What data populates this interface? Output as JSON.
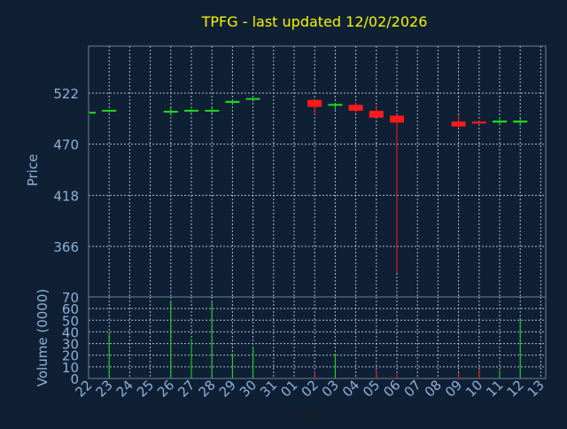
{
  "chart_data": {
    "type": "candlestick",
    "title": "TPFG - last updated 12/02/2026",
    "xlabel": "Day",
    "price_panel": {
      "ylabel": "Price",
      "yticks": [
        "366",
        "418",
        "470",
        "522"
      ],
      "grid": true
    },
    "volume_panel": {
      "ylabel": "Volume (0000)",
      "yticks": [
        "0",
        "10",
        "20",
        "30",
        "40",
        "50",
        "60",
        "70"
      ],
      "grid": true
    },
    "x_tick_labels": [
      "22",
      "23",
      "24",
      "25",
      "26",
      "27",
      "28",
      "29",
      "30",
      "31",
      "01",
      "02",
      "03",
      "04",
      "05",
      "06",
      "07",
      "08",
      "09",
      "10",
      "11",
      "12",
      "13"
    ],
    "candles": [
      {
        "day": "22",
        "open": 502,
        "high": 503,
        "low": 501,
        "close": 502,
        "volume": 0
      },
      {
        "day": "23",
        "open": 503,
        "high": 505,
        "low": 502,
        "close": 504,
        "volume": 39
      },
      {
        "day": "26",
        "open": 502,
        "high": 507,
        "low": 499,
        "close": 503,
        "volume": 67
      },
      {
        "day": "27",
        "open": 503,
        "high": 506,
        "low": 500,
        "close": 504,
        "volume": 34
      },
      {
        "day": "28",
        "open": 503,
        "high": 507,
        "low": 500,
        "close": 504,
        "volume": 66
      },
      {
        "day": "29",
        "open": 512,
        "high": 515,
        "low": 510,
        "close": 514,
        "volume": 21
      },
      {
        "day": "30",
        "open": 515,
        "high": 517,
        "low": 513,
        "close": 516,
        "volume": 26
      },
      {
        "day": "02",
        "open": 515,
        "high": 516,
        "low": 500,
        "close": 508,
        "volume": 6
      },
      {
        "day": "03",
        "open": 509,
        "high": 512,
        "low": 504,
        "close": 510,
        "volume": 21
      },
      {
        "day": "04",
        "open": 510,
        "high": 512,
        "low": 501,
        "close": 504,
        "volume": 1
      },
      {
        "day": "05",
        "open": 504,
        "high": 509,
        "low": 497,
        "close": 497,
        "volume": 7
      },
      {
        "day": "06",
        "open": 499,
        "high": 500,
        "low": 339,
        "close": 492,
        "volume": 4
      },
      {
        "day": "09",
        "open": 493,
        "high": 499,
        "low": 487,
        "close": 488,
        "volume": 5
      },
      {
        "day": "10",
        "open": 493,
        "high": 494,
        "low": 490,
        "close": 491,
        "volume": 8
      },
      {
        "day": "11",
        "open": 492,
        "high": 498,
        "low": 489,
        "close": 494,
        "volume": 7
      },
      {
        "day": "12",
        "open": 492,
        "high": 497,
        "low": 489,
        "close": 494,
        "volume": 52
      }
    ],
    "colors": {
      "background": "#0f2035",
      "grid": "#c8d6e6",
      "axis": "#6b7f97",
      "up": "#1cdc1c",
      "down": "#ff1a1a",
      "title": "#f5f500",
      "labels": "#8fb0d6"
    }
  }
}
